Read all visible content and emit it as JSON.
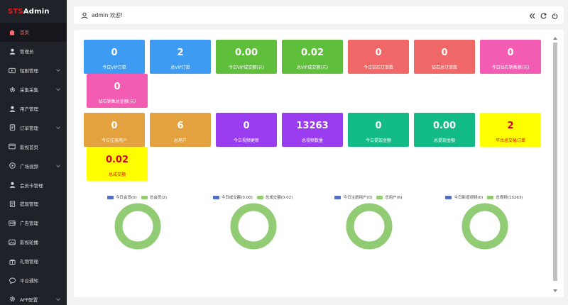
{
  "app": {
    "logo_mark": "STS",
    "logo_name": "Admin"
  },
  "colors": {
    "sidebar_bg": "#20222a",
    "active_text": "#ff6b6b",
    "blue": "#3d9bf1",
    "green": "#5fbe3a",
    "red": "#f06767",
    "pink": "#f25cb2",
    "orange": "#e3a13f",
    "purple": "#9a3cf0",
    "teal": "#13bb86",
    "yellow": "#ffff00",
    "donut_green": "#91cc75",
    "legend_blue": "#5470c6"
  },
  "sidebar": {
    "items": [
      {
        "label": "首页",
        "icon": "home-icon",
        "active": true,
        "has_children": false
      },
      {
        "label": "管理员",
        "icon": "user-icon",
        "active": false,
        "has_children": false
      },
      {
        "label": "短剧管理",
        "icon": "video-icon",
        "active": false,
        "has_children": true
      },
      {
        "label": "采集采集",
        "icon": "gear-icon",
        "active": false,
        "has_children": true
      },
      {
        "label": "用户管理",
        "icon": "user-icon",
        "active": false,
        "has_children": false
      },
      {
        "label": "订单管理",
        "icon": "doc-icon",
        "active": false,
        "has_children": true
      },
      {
        "label": "影视首页",
        "icon": "film-icon",
        "active": false,
        "has_children": false
      },
      {
        "label": "广场视频",
        "icon": "play-icon",
        "active": false,
        "has_children": true
      },
      {
        "label": "会员卡管理",
        "icon": "user-icon",
        "active": false,
        "has_children": false
      },
      {
        "label": "提现管理",
        "icon": "doc-icon",
        "active": false,
        "has_children": false
      },
      {
        "label": "广告管理",
        "icon": "ad-icon",
        "active": false,
        "has_children": false
      },
      {
        "label": "影视轮播",
        "icon": "image-icon",
        "active": false,
        "has_children": false
      },
      {
        "label": "礼物管理",
        "icon": "gift-icon",
        "active": false,
        "has_children": false
      },
      {
        "label": "平台通知",
        "icon": "chat-icon",
        "active": false,
        "has_children": false
      },
      {
        "label": "APP配置",
        "icon": "gear-icon",
        "active": false,
        "has_children": true
      }
    ]
  },
  "header": {
    "welcome": "admin 欢迎!"
  },
  "stats": [
    {
      "value": "0",
      "label": "今日VIP订单",
      "color": "blue"
    },
    {
      "value": "2",
      "label": "总VIP订单",
      "color": "blue"
    },
    {
      "value": "0.00",
      "label": "今日VIP成交额(元)",
      "color": "green"
    },
    {
      "value": "0.02",
      "label": "总VIP成交额(元)",
      "color": "green"
    },
    {
      "value": "0",
      "label": "今日钻石订单数",
      "color": "red"
    },
    {
      "value": "0",
      "label": "钻石总订单数",
      "color": "red"
    },
    {
      "value": "0",
      "label": "今日钻石销售额(元)",
      "color": "pink"
    },
    {
      "value": "0",
      "label": "钻石销售总金额(元)",
      "color": "pink"
    },
    {
      "value": "0",
      "label": "今日注册用户",
      "color": "orange"
    },
    {
      "value": "6",
      "label": "总用户",
      "color": "orange"
    },
    {
      "value": "0",
      "label": "今日视频更新",
      "color": "purple"
    },
    {
      "value": "13263",
      "label": "总视频数量",
      "color": "purple"
    },
    {
      "value": "0",
      "label": "今日提现金额",
      "color": "teal"
    },
    {
      "value": "0.00",
      "label": "总提现金额",
      "color": "teal"
    },
    {
      "value": "2",
      "label": "平台总交易订单",
      "color": "yellow"
    },
    {
      "value": "0.02",
      "label": "总成交额",
      "color": "yellow"
    }
  ],
  "chart_data": [
    {
      "type": "pie",
      "series": [
        {
          "name": "今日会员",
          "value": 0
        },
        {
          "name": "总会员",
          "value": 2
        }
      ],
      "legend": [
        "今日会员(0)",
        "总会员(2)"
      ]
    },
    {
      "type": "pie",
      "series": [
        {
          "name": "今日成交额",
          "value": 0.0
        },
        {
          "name": "总成交额",
          "value": 0.02
        }
      ],
      "legend": [
        "今日成交额(0.00)",
        "总成交额(0.02)"
      ]
    },
    {
      "type": "pie",
      "series": [
        {
          "name": "今日注册用户",
          "value": 0
        },
        {
          "name": "总用户",
          "value": 6
        }
      ],
      "legend": [
        "今日注册用户(0)",
        "总用户(6)"
      ]
    },
    {
      "type": "pie",
      "series": [
        {
          "name": "今日新增视频",
          "value": 0
        },
        {
          "name": "总视频",
          "value": 13263
        }
      ],
      "legend": [
        "今日新增视频(0)",
        "总视频(13263)"
      ]
    }
  ]
}
